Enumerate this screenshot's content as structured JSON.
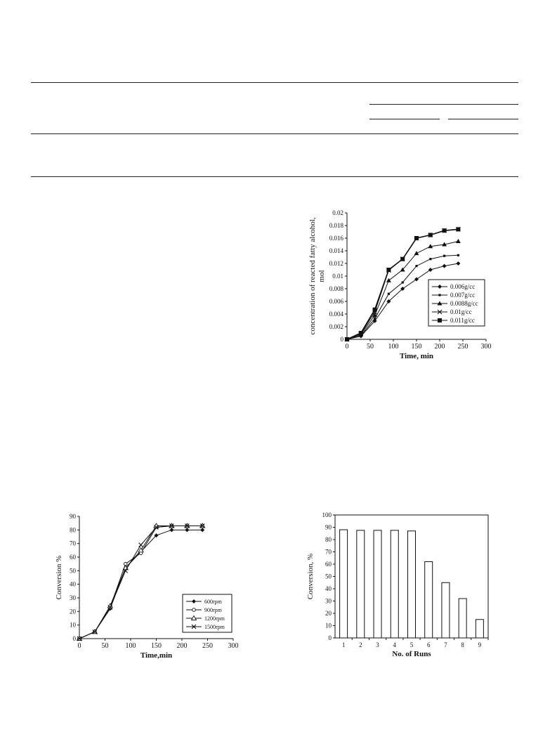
{
  "table_rules_present": true,
  "chart_data": [
    {
      "type": "line",
      "ylabel": "concentration of reacted fatty alcohol, mol",
      "xlabel": "Time, min",
      "xlim": [
        0,
        300
      ],
      "ylim": [
        0,
        0.02
      ],
      "xticks": [
        0,
        50,
        100,
        150,
        200,
        250,
        300
      ],
      "yticks": [
        0,
        0.002,
        0.004,
        0.006,
        0.008,
        0.01,
        0.012,
        0.014,
        0.016,
        0.018,
        0.02
      ],
      "ytick_labels": [
        "0",
        "0.002",
        "0.004",
        "0.006",
        "0.008",
        "0.01",
        "0.012",
        "0.014",
        "0.016",
        "0.018",
        "0.02"
      ],
      "legend_position": "bottom-right",
      "x": [
        0,
        30,
        60,
        90,
        120,
        150,
        180,
        210,
        240
      ],
      "series": [
        {
          "name": "0.006g/cc",
          "marker": "diamond",
          "values": [
            0,
            0.0005,
            0.0029,
            0.006,
            0.008,
            0.0095,
            0.011,
            0.0116,
            0.012
          ]
        },
        {
          "name": "0.007g/cc",
          "marker": "small-square",
          "values": [
            0,
            0.0006,
            0.0033,
            0.0072,
            0.009,
            0.0116,
            0.0127,
            0.0132,
            0.0133
          ]
        },
        {
          "name": "0.0088g/cc",
          "marker": "triangle",
          "values": [
            0,
            0.0008,
            0.0038,
            0.0093,
            0.011,
            0.0136,
            0.0147,
            0.015,
            0.0155
          ]
        },
        {
          "name": "0.01g/cc",
          "marker": "x",
          "values": [
            0,
            0.0009,
            0.0043,
            0.0109,
            0.0127,
            0.016,
            0.0165,
            0.0172,
            0.0174
          ]
        },
        {
          "name": "0.011g/cc",
          "marker": "square",
          "values": [
            0,
            0.001,
            0.0047,
            0.011,
            0.0127,
            0.016,
            0.0165,
            0.0172,
            0.0174
          ]
        }
      ]
    },
    {
      "type": "line",
      "ylabel": "Conversion %",
      "xlabel": "Time,min",
      "xlim": [
        0,
        300
      ],
      "ylim": [
        0,
        90
      ],
      "xticks": [
        0,
        50,
        100,
        150,
        200,
        250,
        300
      ],
      "yticks": [
        0,
        10,
        20,
        30,
        40,
        50,
        60,
        70,
        80,
        90
      ],
      "legend_position": "bottom-right",
      "x": [
        0,
        30,
        60,
        90,
        120,
        150,
        180,
        210,
        240
      ],
      "series": [
        {
          "name": "600rpm",
          "marker": "diamond",
          "values": [
            0,
            5,
            22,
            52,
            64,
            76,
            80,
            80,
            80
          ]
        },
        {
          "name": "900rpm",
          "marker": "open-circle",
          "values": [
            0,
            5,
            23,
            55,
            63,
            82,
            83,
            83,
            83
          ]
        },
        {
          "name": "1200rpm",
          "marker": "open-triangle",
          "values": [
            0,
            5,
            24,
            52,
            65,
            83,
            83,
            83,
            83
          ]
        },
        {
          "name": "1500rpm",
          "marker": "x",
          "values": [
            0,
            5,
            23,
            50,
            69,
            82,
            83,
            83,
            83
          ]
        }
      ]
    },
    {
      "type": "bar",
      "ylabel": "Conversion, %",
      "xlabel": "No. of Runs",
      "ylim": [
        0,
        100
      ],
      "yticks": [
        0,
        10,
        20,
        30,
        40,
        50,
        60,
        70,
        80,
        90,
        100
      ],
      "categories": [
        "1",
        "2",
        "3",
        "4",
        "5",
        "6",
        "7",
        "8",
        "9"
      ],
      "values": [
        88,
        87.5,
        87.5,
        87.5,
        87,
        62,
        45,
        32,
        15
      ]
    }
  ]
}
